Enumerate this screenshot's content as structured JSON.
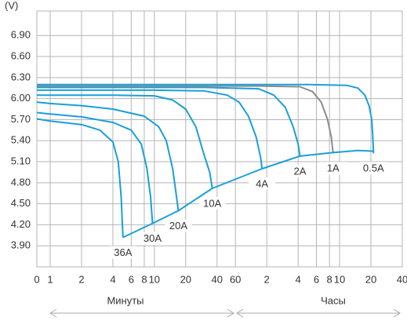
{
  "chart_data": {
    "type": "line",
    "y_label": "(V)",
    "x_group_labels": [
      "Минуты",
      "Часы"
    ],
    "xscale": "log",
    "xlim": [
      0.745,
      2400
    ],
    "ylim": [
      3.6,
      7.25
    ],
    "grid": true,
    "xticks": [
      0,
      1,
      2,
      4,
      6,
      8,
      10,
      20,
      40,
      60,
      {
        "value": 120,
        "label": "2"
      },
      {
        "value": 240,
        "label": "4"
      },
      {
        "value": 360,
        "label": "6"
      },
      {
        "value": 480,
        "label": "8"
      },
      {
        "value": 600,
        "label": "10"
      },
      {
        "value": 1200,
        "label": "20"
      },
      {
        "value": 2400,
        "label": "40"
      }
    ],
    "yticks": [
      {
        "value": 3.9,
        "label": "3.90"
      },
      {
        "value": 4.2,
        "label": "4.20"
      },
      {
        "value": 4.5,
        "label": "4.50"
      },
      {
        "value": 4.8,
        "label": "4.80"
      },
      {
        "value": 5.1,
        "label": "5.10"
      },
      {
        "value": 5.4,
        "label": "5.40"
      },
      {
        "value": 5.7,
        "label": "5.70"
      },
      {
        "value": 6.0,
        "label": "6.00"
      },
      {
        "value": 6.3,
        "label": "6.30"
      },
      {
        "value": 6.6,
        "label": "6.60"
      },
      {
        "value": 6.9,
        "label": "6.90"
      }
    ],
    "series": [
      {
        "name": "36A",
        "color": "#1a9fd9",
        "x": [
          0,
          1,
          2,
          3,
          4,
          4.5,
          4.8,
          5
        ],
        "values": [
          5.71,
          5.68,
          5.63,
          5.55,
          5.38,
          5.1,
          4.6,
          4.02
        ]
      },
      {
        "name": "30A",
        "color": "#1a9fd9",
        "x": [
          0,
          1,
          2,
          4,
          6,
          7.5,
          8.5,
          9.2,
          9.6
        ],
        "values": [
          5.8,
          5.78,
          5.74,
          5.66,
          5.55,
          5.35,
          5.0,
          4.6,
          4.22
        ]
      },
      {
        "name": "20A",
        "color": "#1a9fd9",
        "x": [
          0,
          1,
          2,
          4,
          8,
          11,
          13,
          15,
          16,
          17
        ],
        "values": [
          5.95,
          5.93,
          5.9,
          5.85,
          5.75,
          5.6,
          5.4,
          5.0,
          4.7,
          4.4
        ]
      },
      {
        "name": "10A",
        "color": "#1a9fd9",
        "x": [
          0,
          1,
          4,
          10,
          15,
          20,
          25,
          30,
          34,
          36
        ],
        "values": [
          6.05,
          6.05,
          6.05,
          6.04,
          5.98,
          5.85,
          5.6,
          5.2,
          4.95,
          4.72
        ]
      },
      {
        "name": "4A",
        "color": "#1a9fd9",
        "x": [
          0,
          10,
          30,
          50,
          65,
          80,
          95,
          105,
          108
        ],
        "values": [
          6.12,
          6.12,
          6.11,
          6.05,
          5.95,
          5.75,
          5.45,
          5.15,
          5.0
        ]
      },
      {
        "name": "2A",
        "color": "#1a9fd9",
        "x": [
          0,
          30,
          100,
          140,
          180,
          215,
          240,
          250
        ],
        "values": [
          6.16,
          6.16,
          6.14,
          6.05,
          5.88,
          5.6,
          5.35,
          5.18
        ]
      },
      {
        "name": "1A",
        "color": "#8c8c8c",
        "x": [
          0,
          100,
          250,
          330,
          400,
          460,
          500,
          520
        ],
        "values": [
          6.18,
          6.18,
          6.17,
          6.1,
          5.95,
          5.7,
          5.45,
          5.22
        ]
      },
      {
        "name": "0.5A",
        "color": "#1a9fd9",
        "x": [
          0,
          300,
          700,
          900,
          1050,
          1150,
          1220,
          1250,
          1270
        ],
        "values": [
          6.2,
          6.2,
          6.19,
          6.15,
          6.05,
          5.9,
          5.7,
          5.45,
          5.22
        ]
      },
      {
        "color": "#1a9fd9",
        "x": [
          5,
          9.6,
          17,
          36,
          108,
          250,
          520,
          900,
          1270
        ],
        "values": [
          4.02,
          4.22,
          4.4,
          4.72,
          5.0,
          5.18,
          5.23,
          5.26,
          5.25
        ]
      }
    ]
  }
}
